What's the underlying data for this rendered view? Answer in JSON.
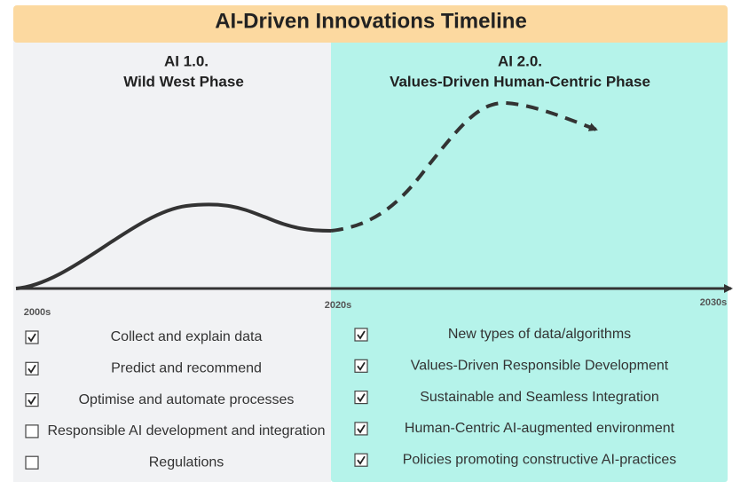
{
  "title": "AI-Driven Innovations Timeline",
  "left": {
    "heading": [
      "AI 1.0.",
      "Wild West Phase"
    ],
    "items": [
      {
        "label": "Collect and explain data",
        "checked": true
      },
      {
        "label": "Predict and recommend",
        "checked": true
      },
      {
        "label": "Optimise and automate processes",
        "checked": true
      },
      {
        "label": "Responsible AI development and integration",
        "checked": false
      },
      {
        "label": "Regulations",
        "checked": false
      }
    ]
  },
  "right": {
    "heading": [
      "AI 2.0.",
      "Values-Driven Human-Centric Phase"
    ],
    "items": [
      {
        "label": "New types of data/algorithms",
        "checked": true
      },
      {
        "label": "Values-Driven Responsible Development",
        "checked": true
      },
      {
        "label": "Sustainable and Seamless Integration",
        "checked": true
      },
      {
        "label": "Human-Centric AI-augmented environment",
        "checked": true
      },
      {
        "label": "Policies promoting constructive AI-practices",
        "checked": true
      }
    ]
  },
  "timeline": [
    "2000s",
    "2020s",
    "2030s"
  ]
}
